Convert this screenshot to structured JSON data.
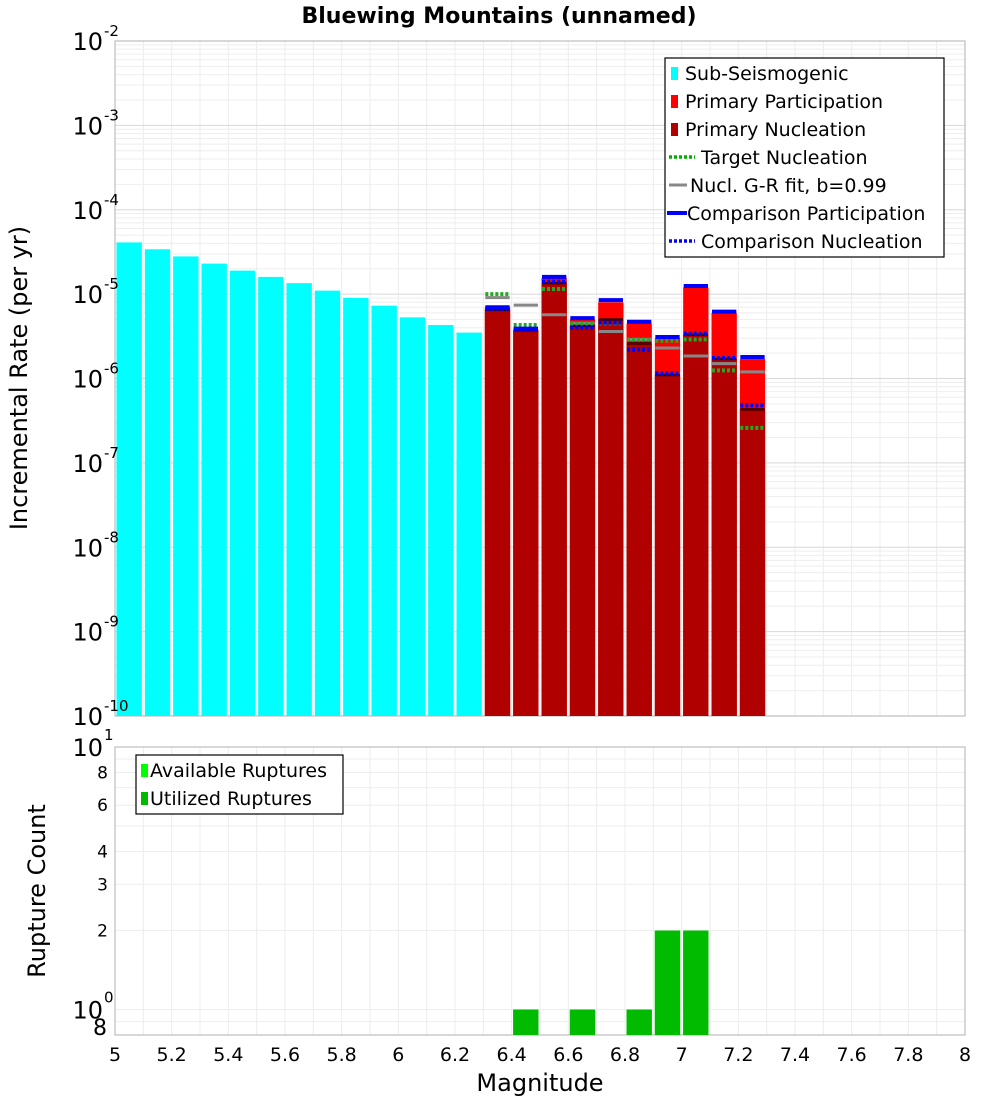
{
  "chart_data": [
    {
      "type": "bar",
      "title": "Bluewing Mountains (unnamed)",
      "xlabel": "",
      "ylabel": "Incremental Rate (per yr)",
      "yscale": "log",
      "xlim": [
        5,
        8
      ],
      "ylim_exp": [
        -10,
        -2
      ],
      "ytick_base": "10",
      "ytick_exponents": [
        "-10",
        "-9",
        "-8",
        "-7",
        "-6",
        "-5",
        "-4",
        "-3",
        "-2"
      ],
      "bin_width": 0.1,
      "legend": {
        "position": "top-right",
        "entries": [
          {
            "label": "Sub-Seismogenic",
            "color": "#00ffff",
            "style": "bar"
          },
          {
            "label": "Primary Participation",
            "color": "#ff0000",
            "style": "bar"
          },
          {
            "label": "Primary Nucleation",
            "color": "#b00000",
            "style": "bar"
          },
          {
            "label": "Target Nucleation",
            "color": "#00b000",
            "style": "dotted"
          },
          {
            "label": "Nucl. G-R fit, b=0.99",
            "color": "#888888",
            "style": "line"
          },
          {
            "label": "Comparison Participation",
            "color": "#0000ff",
            "style": "thick"
          },
          {
            "label": "Comparison Nucleation",
            "color": "#0000ff",
            "style": "dotted"
          }
        ]
      },
      "series": [
        {
          "name": "Sub-Seismogenic",
          "color": "#00ffff",
          "x": [
            5.05,
            5.15,
            5.25,
            5.35,
            5.45,
            5.55,
            5.65,
            5.75,
            5.85,
            5.95,
            6.05,
            6.15,
            6.25
          ],
          "values": [
            4.1e-05,
            3.4e-05,
            2.8e-05,
            2.3e-05,
            1.9e-05,
            1.6e-05,
            1.35e-05,
            1.1e-05,
            9e-06,
            7.3e-06,
            5.3e-06,
            4.3e-06,
            3.5e-06
          ]
        },
        {
          "name": "Primary Participation",
          "color": "#ff0000",
          "x": [
            6.35,
            6.45,
            6.55,
            6.65,
            6.75,
            6.85,
            6.95,
            7.05,
            7.15,
            7.25
          ],
          "values": [
            7e-06,
            3.8e-06,
            1.55e-05,
            5e-06,
            8e-06,
            4.5e-06,
            3e-06,
            1.2e-05,
            6e-06,
            1.7e-06
          ]
        },
        {
          "name": "Primary Nucleation",
          "color": "#b00000",
          "x": [
            6.35,
            6.45,
            6.55,
            6.65,
            6.75,
            6.85,
            6.95,
            7.05,
            7.15,
            7.25
          ],
          "values": [
            6.5e-06,
            3.7e-06,
            1.35e-05,
            4.2e-06,
            5e-06,
            2.6e-06,
            1.1e-06,
            3.3e-06,
            1.7e-06,
            4.3e-07
          ]
        },
        {
          "name": "Target Nucleation",
          "color": "#00b000",
          "x": [
            6.35,
            6.45,
            6.55,
            6.65,
            6.75,
            6.85,
            6.95,
            7.05,
            7.15,
            7.25
          ],
          "values": [
            1e-05,
            4.3e-06,
            1.15e-05,
            4.5e-06,
            4.5e-06,
            2.9e-06,
            2.8e-06,
            2.9e-06,
            1.25e-06,
            2.6e-07
          ]
        },
        {
          "name": "Nucl. G-R fit, b=0.99",
          "color": "#888888",
          "x": [
            6.35,
            6.45,
            6.55,
            6.65,
            6.75,
            6.85,
            6.95,
            7.05,
            7.15,
            7.25
          ],
          "values": [
            9.1e-06,
            7.4e-06,
            5.7e-06,
            4.5e-06,
            3.6e-06,
            2.9e-06,
            2.3e-06,
            1.85e-06,
            1.5e-06,
            1.2e-06
          ]
        },
        {
          "name": "Comparison Participation",
          "color": "#0000ff",
          "x": [
            6.35,
            6.45,
            6.55,
            6.65,
            6.75,
            6.85,
            6.95,
            7.05,
            7.15,
            7.25
          ],
          "values": [
            7e-06,
            3.9e-06,
            1.6e-05,
            5.2e-06,
            8.5e-06,
            4.7e-06,
            3.1e-06,
            1.25e-05,
            6.2e-06,
            1.8e-06
          ]
        },
        {
          "name": "Comparison Nucleation",
          "color": "#0000ff",
          "x": [
            6.35,
            6.45,
            6.55,
            6.65,
            6.75,
            6.85,
            6.95,
            7.05,
            7.15,
            7.25
          ],
          "values": [
            6.7e-06,
            3.8e-06,
            1.4e-05,
            4e-06,
            4.6e-06,
            2.2e-06,
            1.15e-06,
            3.4e-06,
            1.75e-06,
            4.8e-07
          ]
        }
      ]
    },
    {
      "type": "bar",
      "title": "",
      "xlabel": "Magnitude",
      "ylabel": "Rupture Count",
      "yscale": "log",
      "xlim": [
        5,
        8
      ],
      "ylim": [
        0.8,
        10
      ],
      "bin_width": 0.1,
      "x_ticks": [
        "5",
        "5.2",
        "5.4",
        "5.6",
        "5.8",
        "6",
        "6.2",
        "6.4",
        "6.6",
        "6.8",
        "7",
        "7.2",
        "7.4",
        "7.6",
        "7.8",
        "8"
      ],
      "y_minor_ticks": [
        {
          "value": 0.8,
          "label": "8"
        },
        {
          "value": 2,
          "label": "2"
        },
        {
          "value": 3,
          "label": "3"
        },
        {
          "value": 4,
          "label": "4"
        },
        {
          "value": 6,
          "label": "6"
        },
        {
          "value": 8,
          "label": "8"
        }
      ],
      "y_major_ticks": [
        {
          "value": 1,
          "base": "10",
          "exp": "0"
        },
        {
          "value": 10,
          "base": "10",
          "exp": "1"
        }
      ],
      "legend": {
        "position": "top-left",
        "entries": [
          {
            "label": "Available Ruptures",
            "color": "#00ff00"
          },
          {
            "label": "Utilized Ruptures",
            "color": "#00bb00"
          }
        ]
      },
      "series": [
        {
          "name": "Available Ruptures",
          "color": "#00ff00",
          "x": [
            6.45,
            6.65,
            6.85,
            6.95,
            7.05
          ],
          "values": [
            1,
            1,
            1,
            2,
            2
          ]
        },
        {
          "name": "Utilized Ruptures",
          "color": "#00bb00",
          "x": [
            6.45,
            6.65,
            6.85,
            6.95,
            7.05
          ],
          "values": [
            1,
            1,
            1,
            2,
            2
          ]
        }
      ]
    }
  ]
}
